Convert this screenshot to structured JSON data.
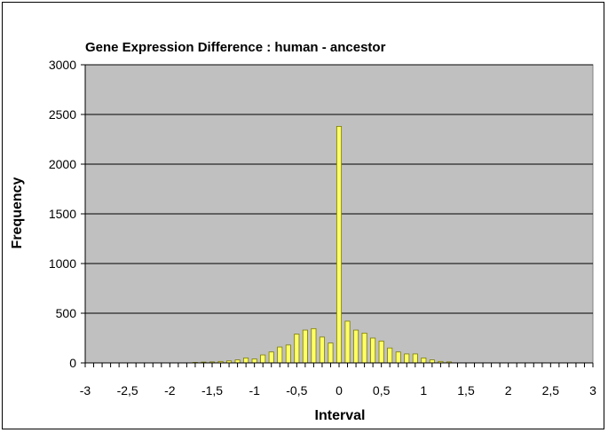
{
  "chart_data": {
    "type": "bar",
    "title": "Gene Expression Difference : human - ancestor",
    "xlabel": "Interval",
    "ylabel": "Frequency",
    "ylim": [
      0,
      3000
    ],
    "xlim": [
      -3,
      3
    ],
    "yticks": [
      "0",
      "500",
      "1000",
      "1500",
      "2000",
      "2500",
      "3000"
    ],
    "xticks": [
      "-3",
      "-2,5",
      "-2",
      "-1,5",
      "-1",
      "-0,5",
      "0",
      "0,5",
      "1",
      "1,5",
      "2",
      "2,5",
      "3"
    ],
    "grid": true,
    "colors": {
      "plot_bg": "#c0c0c0",
      "bar_fill": "#ffff66",
      "bar_stroke": "#7a7a00",
      "grid": "#000000"
    },
    "bars": [
      {
        "x": -3.0,
        "y": 0
      },
      {
        "x": -2.9,
        "y": 0
      },
      {
        "x": -2.8,
        "y": 0
      },
      {
        "x": -2.7,
        "y": 0
      },
      {
        "x": -2.6,
        "y": 0
      },
      {
        "x": -2.5,
        "y": 0
      },
      {
        "x": -2.4,
        "y": 0
      },
      {
        "x": -2.3,
        "y": 0
      },
      {
        "x": -2.2,
        "y": 0
      },
      {
        "x": -2.1,
        "y": 0
      },
      {
        "x": -2.0,
        "y": 0
      },
      {
        "x": -1.9,
        "y": 0
      },
      {
        "x": -1.8,
        "y": 0
      },
      {
        "x": -1.7,
        "y": 5
      },
      {
        "x": -1.6,
        "y": 8
      },
      {
        "x": -1.5,
        "y": 10
      },
      {
        "x": -1.4,
        "y": 15
      },
      {
        "x": -1.3,
        "y": 20
      },
      {
        "x": -1.2,
        "y": 30
      },
      {
        "x": -1.1,
        "y": 50
      },
      {
        "x": -1.0,
        "y": 40
      },
      {
        "x": -0.9,
        "y": 80
      },
      {
        "x": -0.8,
        "y": 110
      },
      {
        "x": -0.7,
        "y": 160
      },
      {
        "x": -0.6,
        "y": 180
      },
      {
        "x": -0.5,
        "y": 290
      },
      {
        "x": -0.4,
        "y": 330
      },
      {
        "x": -0.3,
        "y": 345
      },
      {
        "x": -0.2,
        "y": 260
      },
      {
        "x": -0.1,
        "y": 200
      },
      {
        "x": 0.0,
        "y": 2380
      },
      {
        "x": 0.1,
        "y": 420
      },
      {
        "x": 0.2,
        "y": 330
      },
      {
        "x": 0.3,
        "y": 300
      },
      {
        "x": 0.4,
        "y": 250
      },
      {
        "x": 0.5,
        "y": 220
      },
      {
        "x": 0.6,
        "y": 150
      },
      {
        "x": 0.7,
        "y": 110
      },
      {
        "x": 0.8,
        "y": 90
      },
      {
        "x": 0.9,
        "y": 90
      },
      {
        "x": 1.0,
        "y": 50
      },
      {
        "x": 1.1,
        "y": 30
      },
      {
        "x": 1.2,
        "y": 15
      },
      {
        "x": 1.3,
        "y": 10
      },
      {
        "x": 1.4,
        "y": 0
      },
      {
        "x": 1.5,
        "y": 0
      },
      {
        "x": 1.6,
        "y": 0
      },
      {
        "x": 1.7,
        "y": 0
      },
      {
        "x": 1.8,
        "y": 0
      },
      {
        "x": 1.9,
        "y": 0
      },
      {
        "x": 2.0,
        "y": 0
      },
      {
        "x": 2.1,
        "y": 0
      },
      {
        "x": 2.2,
        "y": 0
      },
      {
        "x": 2.3,
        "y": 0
      },
      {
        "x": 2.4,
        "y": 0
      },
      {
        "x": 2.5,
        "y": 0
      },
      {
        "x": 2.6,
        "y": 0
      },
      {
        "x": 2.7,
        "y": 0
      },
      {
        "x": 2.8,
        "y": 0
      },
      {
        "x": 2.9,
        "y": 0
      },
      {
        "x": 3.0,
        "y": 0
      }
    ]
  }
}
